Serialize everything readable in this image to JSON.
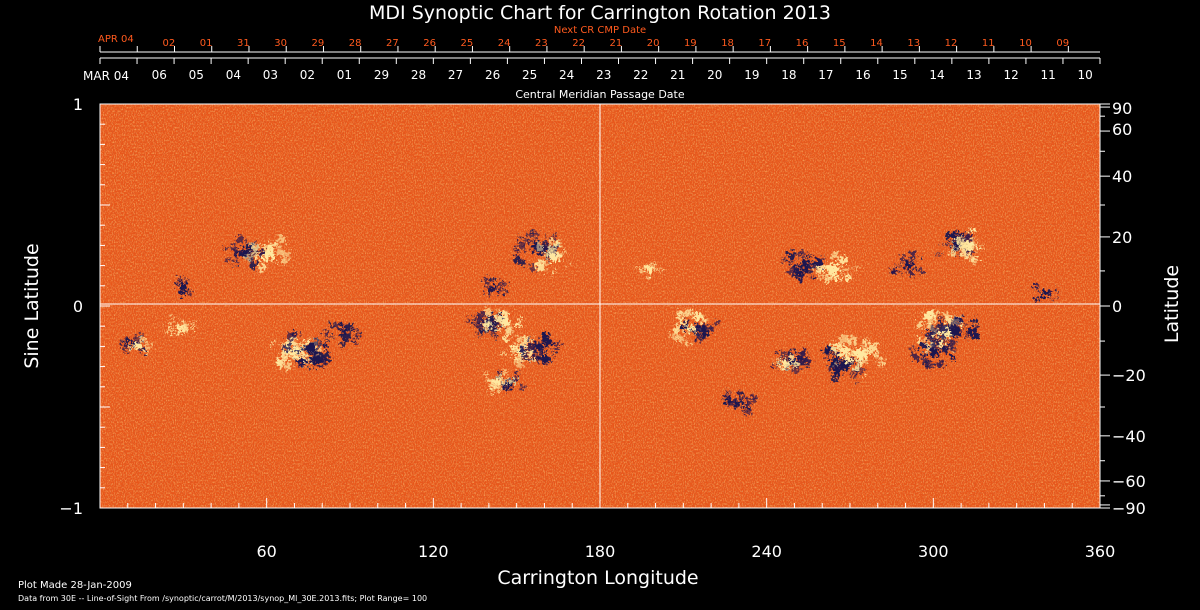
{
  "colors": {
    "background": "#000000",
    "axis": "#ffffff",
    "text": "#ffffff",
    "accent_top_dates": "#ff5a1e",
    "field_base": "#e8561a",
    "positive_polarity": "#ffe8a0",
    "negative_polarity": "#1a1450"
  },
  "chart_data": {
    "type": "heatmap",
    "title": "MDI Synoptic Chart for Carrington Rotation 2013",
    "xlabel": "Carrington Longitude",
    "ylabel_left": "Sine Latitude",
    "ylabel_right": "Latitude",
    "xlim": [
      0,
      360
    ],
    "ylim": [
      -1,
      1
    ],
    "x_ticks": [
      60,
      120,
      180,
      240,
      300,
      360
    ],
    "y_ticks_left": [
      -1,
      0,
      1
    ],
    "y_ticks_left_labels": [
      "−1",
      "0",
      "1"
    ],
    "y_ticks_right": [
      90,
      60,
      40,
      20,
      0,
      -20,
      -40,
      -60,
      -90
    ],
    "y_ticks_right_labels": [
      "90",
      "60",
      "40",
      "20",
      "0",
      "−20",
      "−40",
      "−60",
      "−90"
    ],
    "grid": "crosshair at longitude 180 and sine latitude 0",
    "cmp_axis": {
      "label": "Central Meridian Passage Date",
      "start_label": "MAR 04",
      "dates": [
        "06",
        "05",
        "04",
        "03",
        "02",
        "01",
        "29",
        "28",
        "27",
        "26",
        "25",
        "24",
        "23",
        "22",
        "21",
        "20",
        "19",
        "18",
        "17",
        "16",
        "15",
        "14",
        "13",
        "12",
        "11",
        "10"
      ]
    },
    "next_cr_axis": {
      "label": "Next CR CMP Date",
      "start_label": "APR 04",
      "dates": [
        "02",
        "01",
        "31",
        "30",
        "29",
        "28",
        "27",
        "26",
        "25",
        "24",
        "23",
        "22",
        "21",
        "20",
        "19",
        "18",
        "17",
        "16",
        "15",
        "14",
        "13",
        "12",
        "11",
        "10",
        "09"
      ]
    },
    "active_regions": [
      {
        "lon": 52,
        "sinlat": 0.26,
        "polarity": "negative",
        "strength": 1.0
      },
      {
        "lon": 61,
        "sinlat": 0.26,
        "polarity": "positive",
        "strength": 1.0
      },
      {
        "lon": 158,
        "sinlat": 0.28,
        "polarity": "negative",
        "strength": 1.2
      },
      {
        "lon": 163,
        "sinlat": 0.24,
        "polarity": "positive",
        "strength": 1.0
      },
      {
        "lon": 142,
        "sinlat": 0.09,
        "polarity": "negative",
        "strength": 0.6
      },
      {
        "lon": 140,
        "sinlat": -0.09,
        "polarity": "negative",
        "strength": 1.0
      },
      {
        "lon": 146,
        "sinlat": -0.08,
        "polarity": "positive",
        "strength": 1.0
      },
      {
        "lon": 152,
        "sinlat": -0.22,
        "polarity": "positive",
        "strength": 1.0
      },
      {
        "lon": 158,
        "sinlat": -0.2,
        "polarity": "negative",
        "strength": 1.0
      },
      {
        "lon": 147,
        "sinlat": -0.38,
        "polarity": "negative",
        "strength": 0.8
      },
      {
        "lon": 143,
        "sinlat": -0.37,
        "polarity": "positive",
        "strength": 0.8
      },
      {
        "lon": 70,
        "sinlat": -0.23,
        "polarity": "positive",
        "strength": 1.2
      },
      {
        "lon": 76,
        "sinlat": -0.21,
        "polarity": "negative",
        "strength": 1.2
      },
      {
        "lon": 88,
        "sinlat": -0.13,
        "polarity": "negative",
        "strength": 0.8
      },
      {
        "lon": 29,
        "sinlat": -0.11,
        "polarity": "positive",
        "strength": 0.7
      },
      {
        "lon": 12,
        "sinlat": -0.19,
        "polarity": "negative",
        "strength": 0.7
      },
      {
        "lon": 14,
        "sinlat": -0.2,
        "polarity": "positive",
        "strength": 0.5
      },
      {
        "lon": 30,
        "sinlat": 0.1,
        "polarity": "negative",
        "strength": 0.6
      },
      {
        "lon": 212,
        "sinlat": -0.11,
        "polarity": "positive",
        "strength": 1.0
      },
      {
        "lon": 217,
        "sinlat": -0.12,
        "polarity": "negative",
        "strength": 0.9
      },
      {
        "lon": 249,
        "sinlat": -0.28,
        "polarity": "negative",
        "strength": 0.9
      },
      {
        "lon": 247,
        "sinlat": -0.28,
        "polarity": "positive",
        "strength": 0.6
      },
      {
        "lon": 268,
        "sinlat": -0.29,
        "polarity": "negative",
        "strength": 1.2
      },
      {
        "lon": 274,
        "sinlat": -0.24,
        "polarity": "positive",
        "strength": 1.3
      },
      {
        "lon": 265,
        "sinlat": 0.18,
        "polarity": "positive",
        "strength": 1.0
      },
      {
        "lon": 254,
        "sinlat": 0.2,
        "polarity": "negative",
        "strength": 1.1
      },
      {
        "lon": 304,
        "sinlat": -0.13,
        "polarity": "positive",
        "strength": 1.3
      },
      {
        "lon": 308,
        "sinlat": -0.13,
        "polarity": "negative",
        "strength": 1.2
      },
      {
        "lon": 300,
        "sinlat": -0.23,
        "polarity": "negative",
        "strength": 1.0
      },
      {
        "lon": 308,
        "sinlat": 0.3,
        "polarity": "negative",
        "strength": 1.0
      },
      {
        "lon": 313,
        "sinlat": 0.3,
        "polarity": "positive",
        "strength": 1.0
      },
      {
        "lon": 291,
        "sinlat": 0.2,
        "polarity": "negative",
        "strength": 0.8
      },
      {
        "lon": 340,
        "sinlat": 0.06,
        "polarity": "negative",
        "strength": 0.6
      },
      {
        "lon": 198,
        "sinlat": 0.18,
        "polarity": "positive",
        "strength": 0.6
      },
      {
        "lon": 230,
        "sinlat": -0.48,
        "polarity": "negative",
        "strength": 0.8
      }
    ]
  },
  "footer": {
    "plot_made": "Plot Made 28-Jan-2009",
    "data_source": "Data from 30E -- Line-of-Sight From /synoptic/carrot/M/2013/synop_Ml_30E.2013.fits; Plot Range= 100"
  }
}
